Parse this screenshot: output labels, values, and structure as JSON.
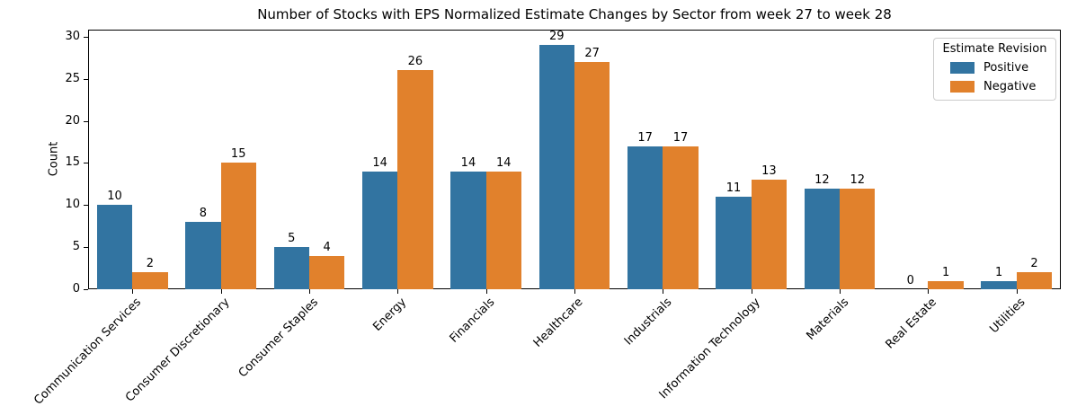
{
  "chart_data": {
    "type": "bar",
    "title": "Number of Stocks with EPS Normalized Estimate Changes by Sector from week 27 to week 28",
    "xlabel": "",
    "ylabel": "Count",
    "categories": [
      "Communication Services",
      "Consumer Discretionary",
      "Consumer Staples",
      "Energy",
      "Financials",
      "Healthcare",
      "Industrials",
      "Information Technology",
      "Materials",
      "Real Estate",
      "Utilities"
    ],
    "series": [
      {
        "name": "Positive",
        "color": "#3274a1",
        "values": [
          10,
          8,
          5,
          14,
          14,
          29,
          17,
          11,
          12,
          0,
          1
        ]
      },
      {
        "name": "Negative",
        "color": "#e1812c",
        "values": [
          2,
          15,
          4,
          26,
          14,
          27,
          17,
          13,
          12,
          1,
          2
        ]
      }
    ],
    "yticks": [
      0,
      5,
      10,
      15,
      20,
      25,
      30
    ],
    "ylim": [
      0,
      30.85
    ],
    "grid": false,
    "x_tick_rotation": 45,
    "bar_value_labels": true,
    "legend": {
      "title": "Estimate Revision",
      "position": "upper right"
    },
    "colors": {
      "axis": "#000000",
      "text": "#000000",
      "background": "#ffffff"
    }
  }
}
